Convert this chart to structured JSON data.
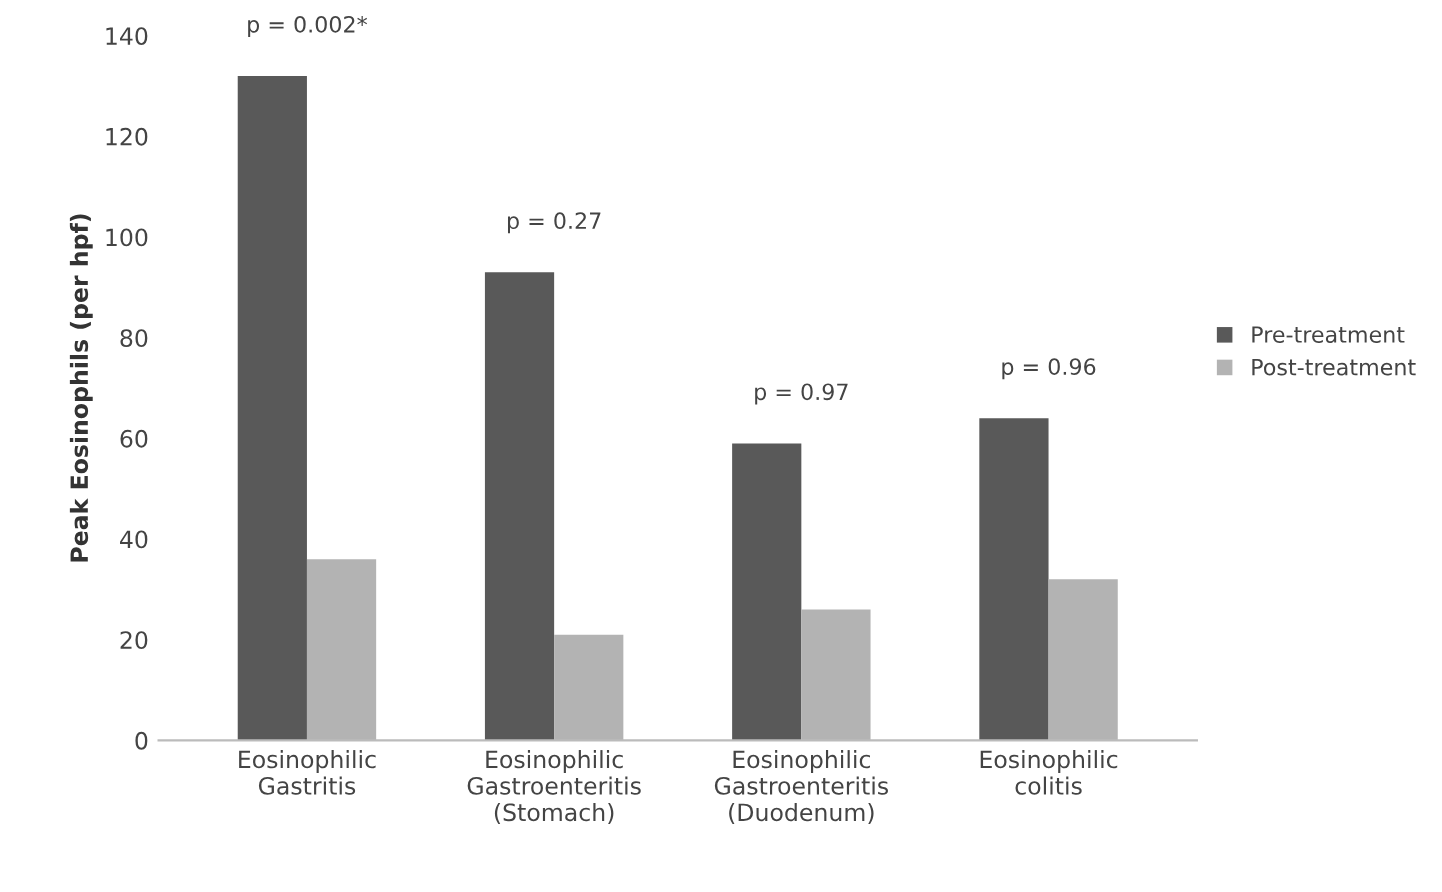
{
  "chart_data": {
    "type": "bar",
    "ylabel": "Peak Eosinophils (per hpf)",
    "categories": [
      "Eosinophilic\nGastritis",
      "Eosinophilic\nGastroenteritis\n(Stomach)",
      "Eosinophilic\nGastroenteritis\n(Duodenum)",
      "Eosinophilic\ncolitis"
    ],
    "series": [
      {
        "name": "Pre-treatment",
        "color": "#595959",
        "values": [
          132,
          93,
          59,
          64
        ]
      },
      {
        "name": "Post-treatment",
        "color": "#b3b3b3",
        "values": [
          36,
          21,
          26,
          32
        ]
      }
    ],
    "ylim": [
      0,
      140
    ],
    "yticks": [
      0,
      20,
      40,
      60,
      80,
      100,
      120,
      140
    ],
    "grid": false,
    "legend": "right",
    "annotations": [
      "p = 0.002*",
      "p = 0.27",
      "p = 0.97",
      "p = 0.96"
    ]
  }
}
